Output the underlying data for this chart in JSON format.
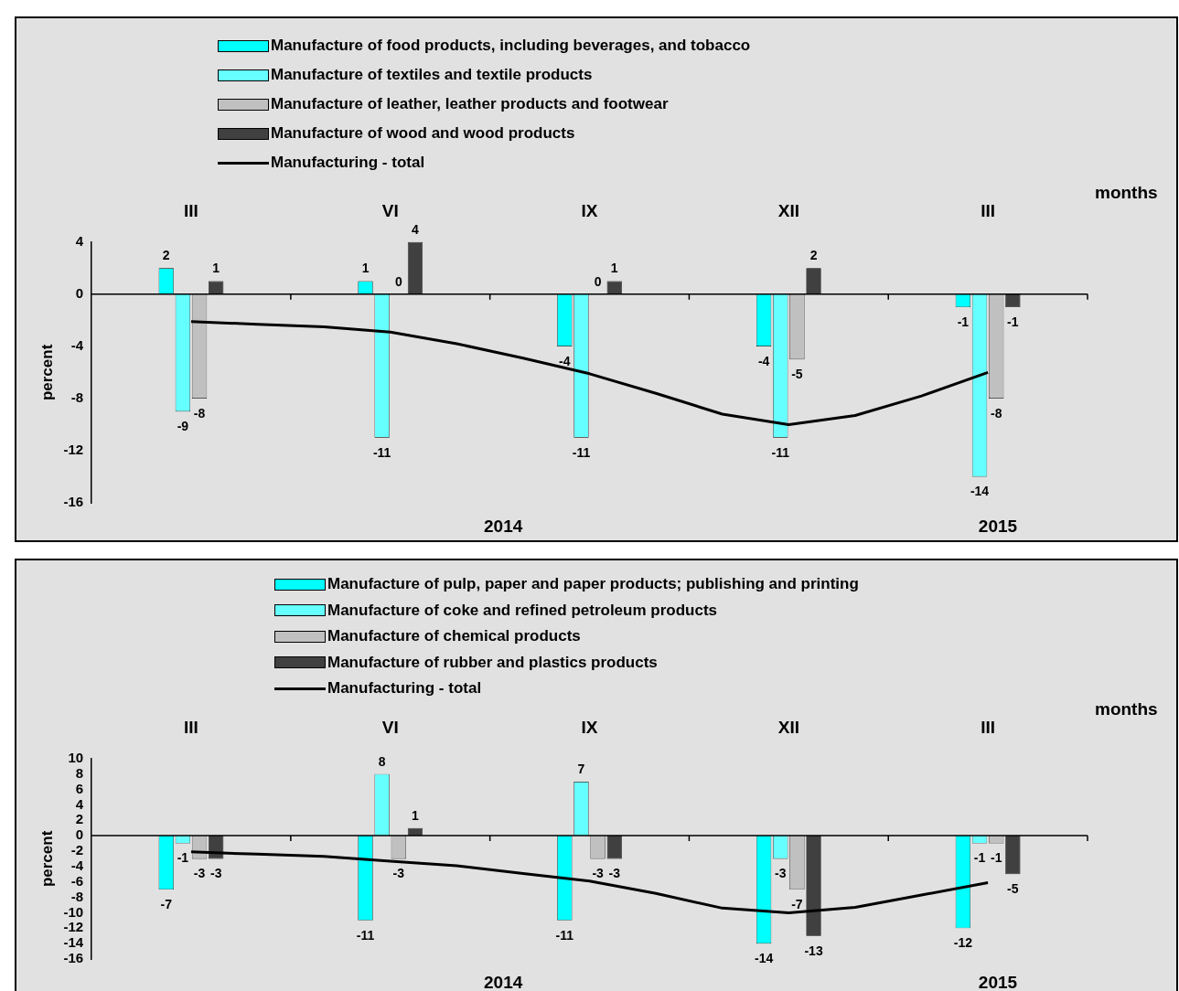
{
  "chart_data": [
    {
      "type": "bar",
      "xlabel": "months",
      "ylabel": "percent",
      "categories": [
        null,
        "III",
        null,
        null,
        "VI",
        null,
        null,
        "IX",
        null,
        null,
        "XII",
        null,
        null,
        "III",
        null
      ],
      "ylim": [
        -16,
        4
      ],
      "yticks": [
        -16,
        -12,
        -8,
        -4,
        0,
        4
      ],
      "legend": "top",
      "marker": "none",
      "annotations": [
        "2014",
        "2015"
      ],
      "series": [
        {
          "name": "Manufacture of food products, including beverages, and tobacco",
          "color": "#00ffff",
          "values": [
            null,
            2,
            null,
            null,
            1,
            null,
            null,
            -4,
            null,
            null,
            -4,
            null,
            null,
            -1,
            null
          ],
          "value_labels": [
            null,
            "2",
            null,
            null,
            "1",
            null,
            null,
            "-4",
            null,
            null,
            "-4",
            null,
            null,
            "-1",
            null
          ]
        },
        {
          "name": "Manufacture of textiles and textile products",
          "color": "#66ffff",
          "values": [
            null,
            -9,
            null,
            null,
            -11,
            null,
            null,
            -11,
            null,
            null,
            -11,
            null,
            null,
            -14,
            null
          ],
          "value_labels": [
            null,
            "-9",
            null,
            null,
            "-11",
            null,
            null,
            "-11",
            null,
            null,
            "-11",
            null,
            null,
            "-14",
            null
          ]
        },
        {
          "name": "Manufacture of leather, leather products and footwear",
          "color": "#c0c0c0",
          "values": [
            null,
            -8,
            null,
            null,
            0,
            null,
            null,
            0,
            null,
            null,
            -5,
            null,
            null,
            -8,
            null
          ],
          "value_labels": [
            null,
            "-8",
            null,
            null,
            "0",
            null,
            null,
            "0",
            null,
            null,
            "-5",
            null,
            null,
            "-8",
            null
          ]
        },
        {
          "name": "Manufacture of wood and wood products",
          "color": "#404040",
          "values": [
            null,
            1,
            null,
            null,
            4,
            null,
            null,
            1,
            null,
            null,
            2,
            null,
            null,
            -1,
            null
          ],
          "value_labels": [
            null,
            "1",
            null,
            null,
            "4",
            null,
            null,
            "1",
            null,
            null,
            "2",
            null,
            null,
            "-1",
            null
          ]
        },
        {
          "name": "Manufacturing - total",
          "type": "line",
          "color": "#000000",
          "values": [
            null,
            -2.1,
            -2.3,
            -2.5,
            -2.9,
            -3.8,
            -4.9,
            -6.1,
            -7.6,
            -9.2,
            -10.0,
            -9.3,
            -7.8,
            -6.0,
            null
          ]
        }
      ]
    },
    {
      "type": "bar",
      "xlabel": "months",
      "ylabel": "percent",
      "categories": [
        null,
        "III",
        null,
        null,
        "VI",
        null,
        null,
        "IX",
        null,
        null,
        "XII",
        null,
        null,
        "III",
        null
      ],
      "ylim": [
        -16,
        10
      ],
      "yticks": [
        -16,
        -14,
        -12,
        -10,
        -8,
        -6,
        -4,
        -2,
        0,
        2,
        4,
        6,
        8,
        10
      ],
      "legend": "top",
      "marker": "none",
      "annotations": [
        "2014",
        "2015"
      ],
      "series": [
        {
          "name": "Manufacture of pulp, paper and paper products; publishing and printing",
          "color": "#00ffff",
          "values": [
            null,
            -7,
            null,
            null,
            -11,
            null,
            null,
            -11,
            null,
            null,
            -14,
            null,
            null,
            -12,
            null
          ],
          "value_labels": [
            null,
            "-7",
            null,
            null,
            "-11",
            null,
            null,
            "-11",
            null,
            null,
            "-14",
            null,
            null,
            "-12",
            null
          ]
        },
        {
          "name": "Manufacture of coke and refined petroleum products",
          "color": "#66ffff",
          "values": [
            null,
            -1,
            null,
            null,
            8,
            null,
            null,
            7,
            null,
            null,
            -3,
            null,
            null,
            -1,
            null
          ],
          "value_labels": [
            null,
            "-1",
            null,
            null,
            "8",
            null,
            null,
            "7",
            null,
            null,
            "-3",
            null,
            null,
            "-1",
            null
          ]
        },
        {
          "name": "Manufacture of chemical products",
          "color": "#c0c0c0",
          "values": [
            null,
            -3,
            null,
            null,
            -3,
            null,
            null,
            -3,
            null,
            null,
            -7,
            null,
            null,
            -1,
            null
          ],
          "value_labels": [
            null,
            "-3",
            null,
            null,
            "-3",
            null,
            null,
            "-3",
            null,
            null,
            "-7",
            null,
            null,
            "-1",
            null
          ]
        },
        {
          "name": "Manufacture of rubber and plastics products",
          "color": "#404040",
          "values": [
            null,
            -3,
            null,
            null,
            1,
            null,
            null,
            -3,
            null,
            null,
            -13,
            null,
            null,
            -5,
            null
          ],
          "value_labels": [
            null,
            "-3",
            null,
            null,
            "1",
            null,
            null,
            "-3",
            null,
            null,
            "-13",
            null,
            null,
            "-5",
            null
          ]
        },
        {
          "name": "Manufacturing - total",
          "type": "line",
          "color": "#000000",
          "values": [
            null,
            -2.1,
            -2.4,
            -2.7,
            -3.3,
            -3.9,
            -4.9,
            -5.9,
            -7.5,
            -9.4,
            -10.0,
            -9.3,
            -7.7,
            -6.1,
            null
          ]
        }
      ]
    }
  ]
}
